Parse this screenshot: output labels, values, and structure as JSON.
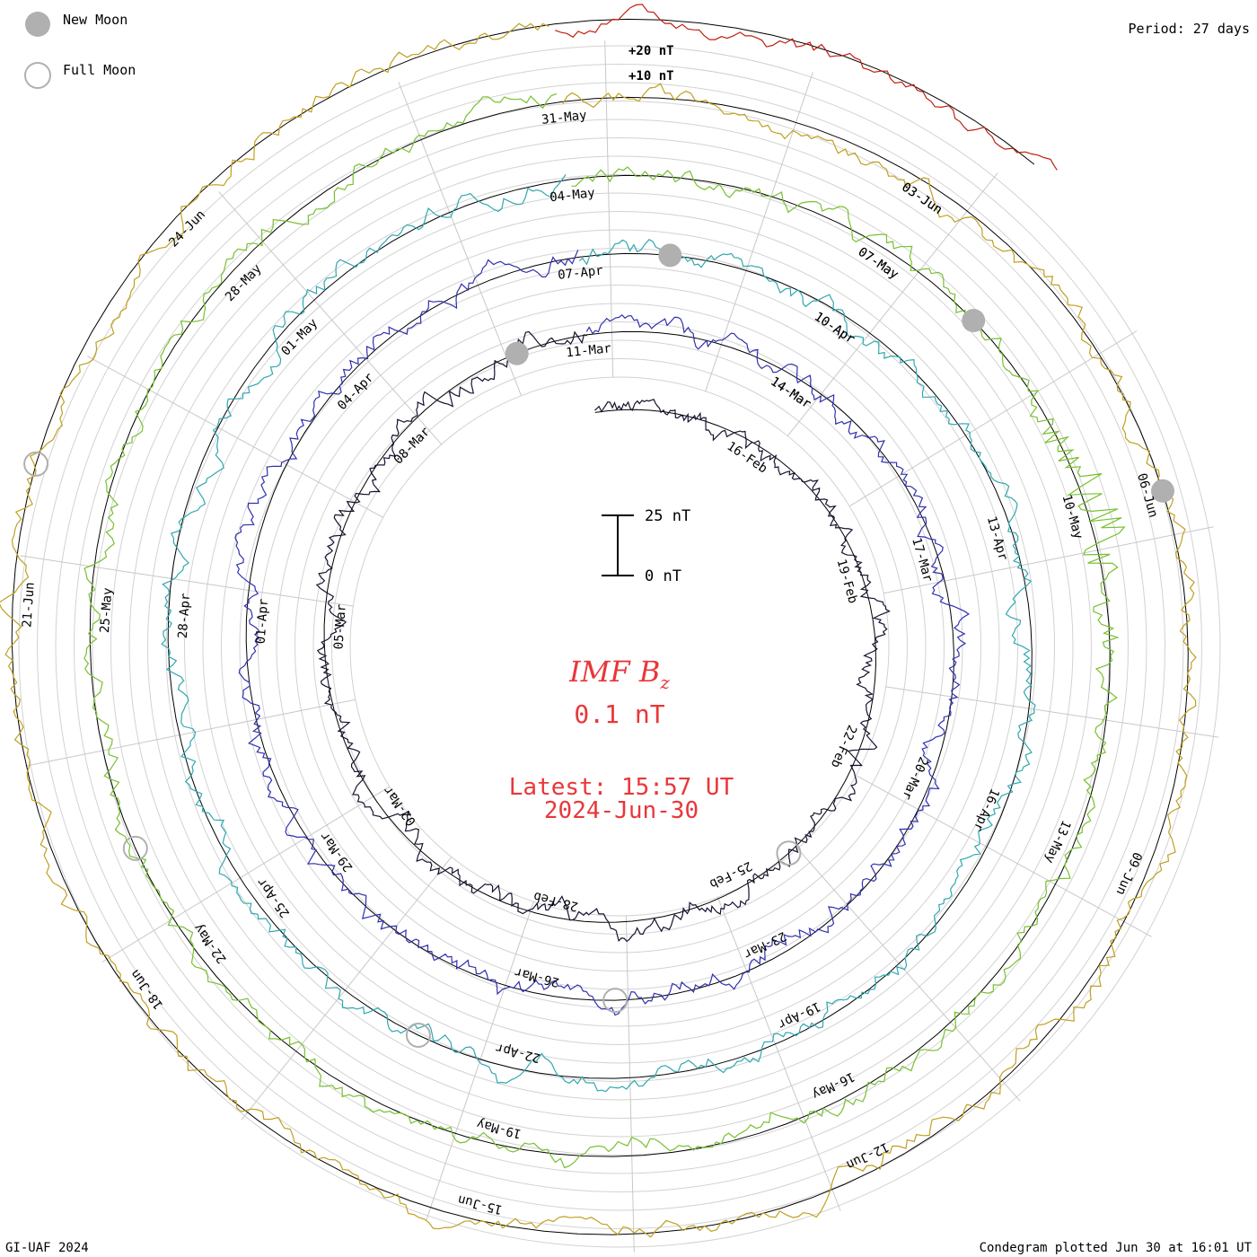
{
  "legend": {
    "new_moon_label": "New Moon",
    "full_moon_label": "Full Moon",
    "new_moon_color": "#b0b0b0",
    "full_moon_color": "#b0b0b0"
  },
  "header": {
    "period": "Period: 27 days"
  },
  "scale_labels": {
    "plus20": "+20 nT",
    "plus10": "+10 nT"
  },
  "scale_bar": {
    "top_label": "25 nT",
    "bottom_label": "0 nT",
    "span_nT": 25
  },
  "center": {
    "title_main": "IMF B",
    "title_sub": "z",
    "value": "0.1 nT",
    "latest_line1": "Latest: 15:57 UT",
    "latest_line2": "2024-Jun-30",
    "text_color": "#e8373a"
  },
  "footer": {
    "left": "GI-UAF 2024",
    "right": "Condegram plotted Jun 30 at 16:01 UT"
  },
  "chart_data": {
    "type": "line",
    "description_type": "condegram spiral",
    "period_days": 27,
    "units": "nT",
    "series": [
      {
        "rotation": 1,
        "color": "#1a1030",
        "start": "2024-02-13",
        "date_labels": [
          "16-Feb",
          "19-Feb",
          "22-Feb",
          "25-Feb",
          "28-Feb",
          "02-Mar",
          "05-Mar",
          "08-Mar",
          "11-Mar",
          "14-Mar"
        ]
      },
      {
        "rotation": 2,
        "color": "#3030b0",
        "start": "2024-03-11",
        "date_labels": [
          "14-Mar",
          "17-Mar",
          "20-Mar",
          "23-Mar",
          "26-Mar",
          "29-Mar",
          "01-Apr",
          "04-Apr",
          "07-Apr",
          "10-Apr"
        ]
      },
      {
        "rotation": 3,
        "color": "#30a8b0",
        "start": "2024-04-07",
        "date_labels": [
          "10-Apr",
          "13-Apr",
          "16-Apr",
          "19-Apr",
          "22-Apr",
          "25-Apr",
          "28-Apr",
          "01-May",
          "04-May",
          "07-May"
        ]
      },
      {
        "rotation": 4,
        "color": "#78c030",
        "start": "2024-05-04",
        "date_labels": [
          "07-May",
          "10-May",
          "13-May",
          "16-May",
          "19-May",
          "22-May",
          "25-May",
          "28-May",
          "31-May",
          "03-Jun"
        ]
      },
      {
        "rotation": 5,
        "color": "#c0a020",
        "start": "2024-05-31",
        "date_labels": [
          "03-Jun",
          "06-Jun",
          "09-Jun",
          "12-Jun",
          "15-Jun",
          "18-Jun",
          "21-Jun",
          "24-Jun"
        ]
      },
      {
        "rotation": 6,
        "color": "#c02010",
        "start": "2024-06-27",
        "date_labels": []
      }
    ],
    "new_moons": [
      "2024-03-10",
      "2024-04-08",
      "2024-05-08",
      "2024-06-06"
    ],
    "full_moons": [
      "2024-02-24",
      "2024-03-25",
      "2024-04-23",
      "2024-05-23",
      "2024-06-22"
    ],
    "ylim": [
      -10,
      20
    ],
    "grid": true
  }
}
